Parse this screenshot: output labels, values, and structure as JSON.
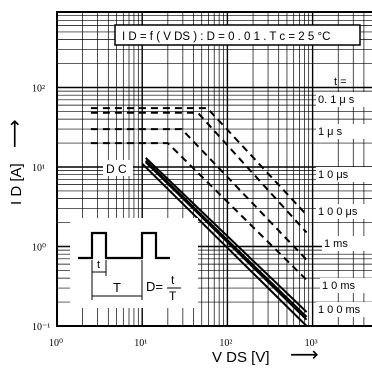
{
  "chart_data": {
    "type": "line",
    "title": "I D = f ( V DS ) : D = 0 . 0 1 .   T c = 2 5 °C",
    "xlabel": "V DS [V]",
    "ylabel": "I D [A]",
    "x_scale": "log",
    "y_scale": "log",
    "xlim": [
      1,
      1000
    ],
    "ylim": [
      0.1,
      500
    ],
    "grid": true,
    "x_ticks": [
      {
        "value": 1,
        "label": "10⁰"
      },
      {
        "value": 10,
        "label": "10¹"
      },
      {
        "value": 100,
        "label": "10²"
      },
      {
        "value": 1000,
        "label": "10³"
      }
    ],
    "y_ticks": [
      {
        "value": 0.1,
        "label": "10⁻¹"
      },
      {
        "value": 1,
        "label": "10⁰"
      },
      {
        "value": 10,
        "label": "10¹"
      },
      {
        "value": 100,
        "label": "10²"
      }
    ],
    "series": [
      {
        "name": "0. 1 μ s",
        "style": "dashed",
        "x": [
          2.5,
          58,
          850
        ],
        "y": [
          55,
          55,
          2.5
        ]
      },
      {
        "name": "1 μ s",
        "style": "dashed",
        "x": [
          2.5,
          45,
          850
        ],
        "y": [
          48,
          48,
          1.5
        ]
      },
      {
        "name": "1 0 μs",
        "style": "dashed",
        "x": [
          2.5,
          29,
          850
        ],
        "y": [
          30,
          30,
          0.68
        ]
      },
      {
        "name": "1 0 0 μs",
        "style": "dashed",
        "x": [
          2.5,
          20,
          850
        ],
        "y": [
          20,
          20,
          0.38
        ]
      },
      {
        "name": "1 ms",
        "style": "solid",
        "x": [
          11,
          850
        ],
        "y": [
          13,
          0.15
        ]
      },
      {
        "name": "1 0 ms",
        "style": "solid",
        "x": [
          11,
          850
        ],
        "y": [
          12,
          0.13
        ]
      },
      {
        "name": "1 0 0 ms",
        "style": "solid",
        "x": [
          11,
          850
        ],
        "y": [
          11.5,
          0.12
        ]
      },
      {
        "name": "D C",
        "style": "solid",
        "x": [
          10,
          850
        ],
        "y": [
          11,
          0.1
        ]
      }
    ],
    "labels": {
      "t_header": "t =",
      "dc": "D C",
      "inset_t": "t",
      "inset_T": "T",
      "inset_D": "D=",
      "inset_frac_num": "t",
      "inset_frac_den": "T"
    }
  }
}
